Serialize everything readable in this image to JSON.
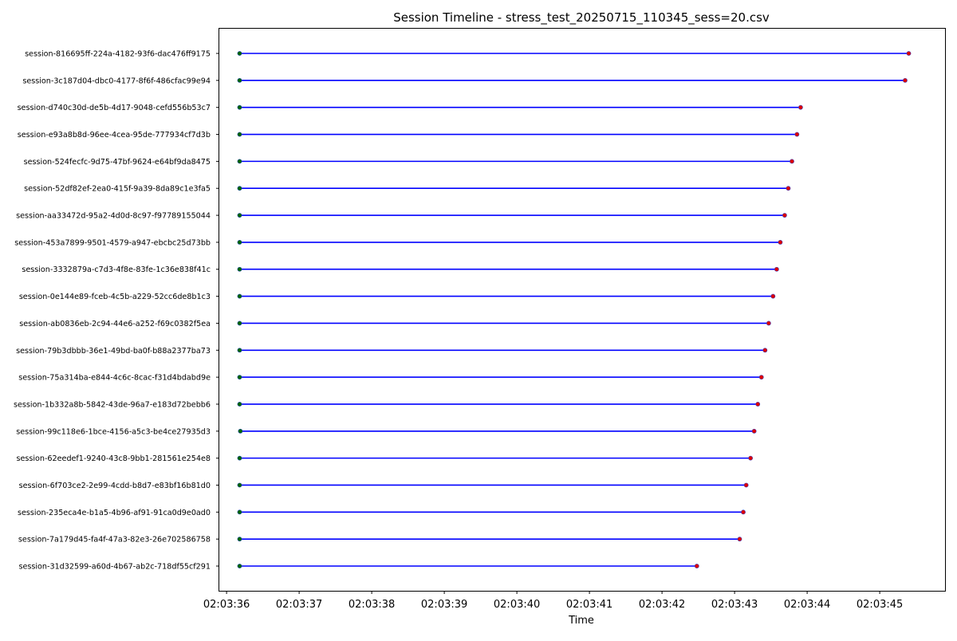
{
  "chart_data": {
    "type": "timeline",
    "title": "Session Timeline - stress_test_20250715_110345_sess=20.csv",
    "xlabel": "Time",
    "ylabel": "",
    "x_ticks": [
      "02:03:36",
      "02:03:37",
      "02:03:38",
      "02:03:39",
      "02:03:40",
      "02:03:41",
      "02:03:42",
      "02:03:43",
      "02:03:44",
      "02:03:45"
    ],
    "xlim": [
      "02:03:35.9",
      "02:03:45.9"
    ],
    "grid": false,
    "colors": {
      "line": "#0000ff",
      "start": "#006400",
      "end": "#dd0000"
    },
    "sessions": [
      {
        "name": "session-816695ff-224a-4182-93f6-dac476ff9175",
        "start": "02:03:36.18",
        "end": "02:03:45.40"
      },
      {
        "name": "session-3c187d04-dbc0-4177-8f6f-486cfac99e94",
        "start": "02:03:36.18",
        "end": "02:03:45.35"
      },
      {
        "name": "session-d740c30d-de5b-4d17-9048-cefd556b53c7",
        "start": "02:03:36.18",
        "end": "02:03:43.91"
      },
      {
        "name": "session-e93a8b8d-96ee-4cea-95de-777934cf7d3b",
        "start": "02:03:36.18",
        "end": "02:03:43.86"
      },
      {
        "name": "session-524fecfc-9d75-47bf-9624-e64bf9da8475",
        "start": "02:03:36.18",
        "end": "02:03:43.79"
      },
      {
        "name": "session-52df82ef-2ea0-415f-9a39-8da89c1e3fa5",
        "start": "02:03:36.18",
        "end": "02:03:43.74"
      },
      {
        "name": "session-aa33472d-95a2-4d0d-8c97-f97789155044",
        "start": "02:03:36.18",
        "end": "02:03:43.69"
      },
      {
        "name": "session-453a7899-9501-4579-a947-ebcbc25d73bb",
        "start": "02:03:36.18",
        "end": "02:03:43.63"
      },
      {
        "name": "session-3332879a-c7d3-4f8e-83fe-1c36e838f41c",
        "start": "02:03:36.18",
        "end": "02:03:43.58"
      },
      {
        "name": "session-0e144e89-fceb-4c5b-a229-52cc6de8b1c3",
        "start": "02:03:36.18",
        "end": "02:03:43.53"
      },
      {
        "name": "session-ab0836eb-2c94-44e6-a252-f69c0382f5ea",
        "start": "02:03:36.18",
        "end": "02:03:43.47"
      },
      {
        "name": "session-79b3dbbb-36e1-49bd-ba0f-b88a2377ba73",
        "start": "02:03:36.18",
        "end": "02:03:43.42"
      },
      {
        "name": "session-75a314ba-e844-4c6c-8cac-f31d4bdabd9e",
        "start": "02:03:36.18",
        "end": "02:03:43.37"
      },
      {
        "name": "session-1b332a8b-5842-43de-96a7-e183d72bebb6",
        "start": "02:03:36.18",
        "end": "02:03:43.32"
      },
      {
        "name": "session-99c118e6-1bce-4156-a5c3-be4ce27935d3",
        "start": "02:03:36.19",
        "end": "02:03:43.27"
      },
      {
        "name": "session-62eedef1-9240-43c8-9bb1-281561e254e8",
        "start": "02:03:36.18",
        "end": "02:03:43.22"
      },
      {
        "name": "session-6f703ce2-2e99-4cdd-b8d7-e83bf16b81d0",
        "start": "02:03:36.18",
        "end": "02:03:43.16"
      },
      {
        "name": "session-235eca4e-b1a5-4b96-af91-91ca0d9e0ad0",
        "start": "02:03:36.18",
        "end": "02:03:43.12"
      },
      {
        "name": "session-7a179d45-fa4f-47a3-82e3-26e702586758",
        "start": "02:03:36.18",
        "end": "02:03:43.07"
      },
      {
        "name": "session-31d32599-a60d-4b67-ab2c-718df55cf291",
        "start": "02:03:36.18",
        "end": "02:03:42.48"
      }
    ]
  }
}
